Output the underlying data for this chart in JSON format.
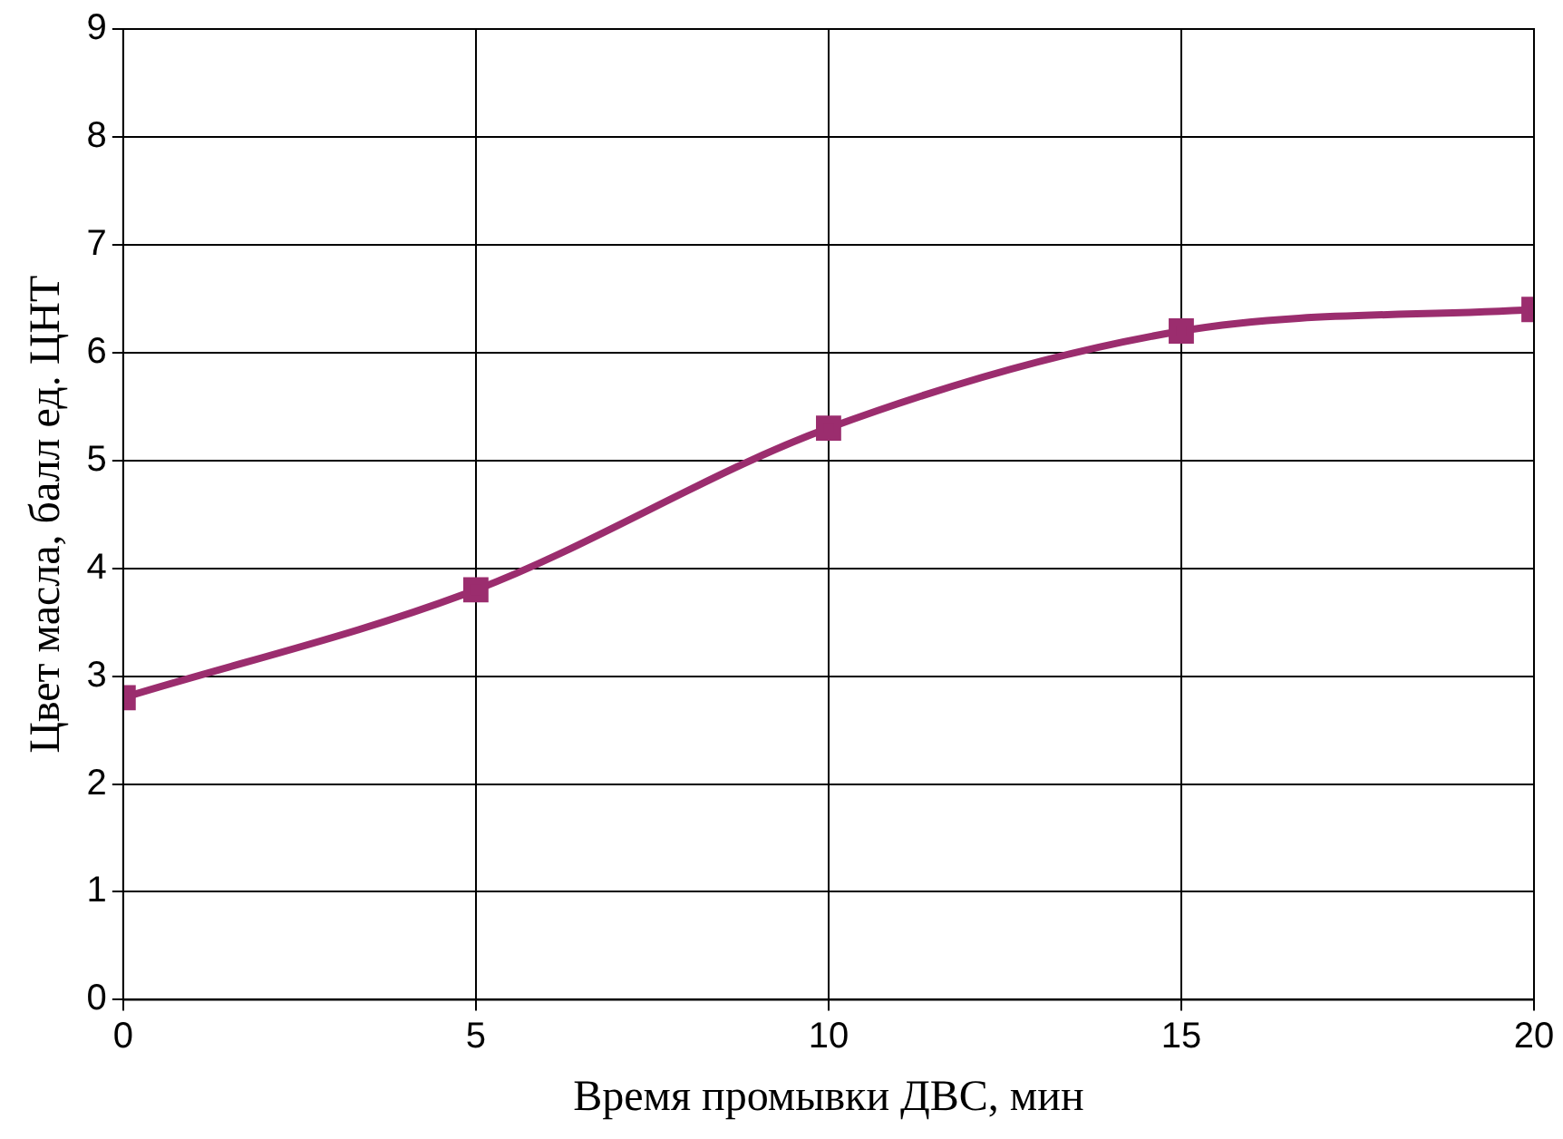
{
  "chart_data": {
    "type": "line",
    "xlabel": "Время промывки ДВС, мин",
    "ylabel": "Цвет масла, балл ед. ЦНТ",
    "x": [
      0,
      5,
      10,
      15,
      20
    ],
    "series": [
      {
        "color": "#9b2d6e",
        "values": [
          2.8,
          3.8,
          5.3,
          6.2,
          6.4
        ]
      }
    ],
    "xlim": [
      0,
      20
    ],
    "xticks": [
      0,
      5,
      10,
      15,
      20
    ],
    "ylim": [
      0,
      9
    ],
    "yticks": [
      0,
      1,
      2,
      3,
      4,
      5,
      6,
      7,
      8,
      9
    ],
    "grid": true,
    "legend": false,
    "marker": "square",
    "line_style": "solid"
  }
}
